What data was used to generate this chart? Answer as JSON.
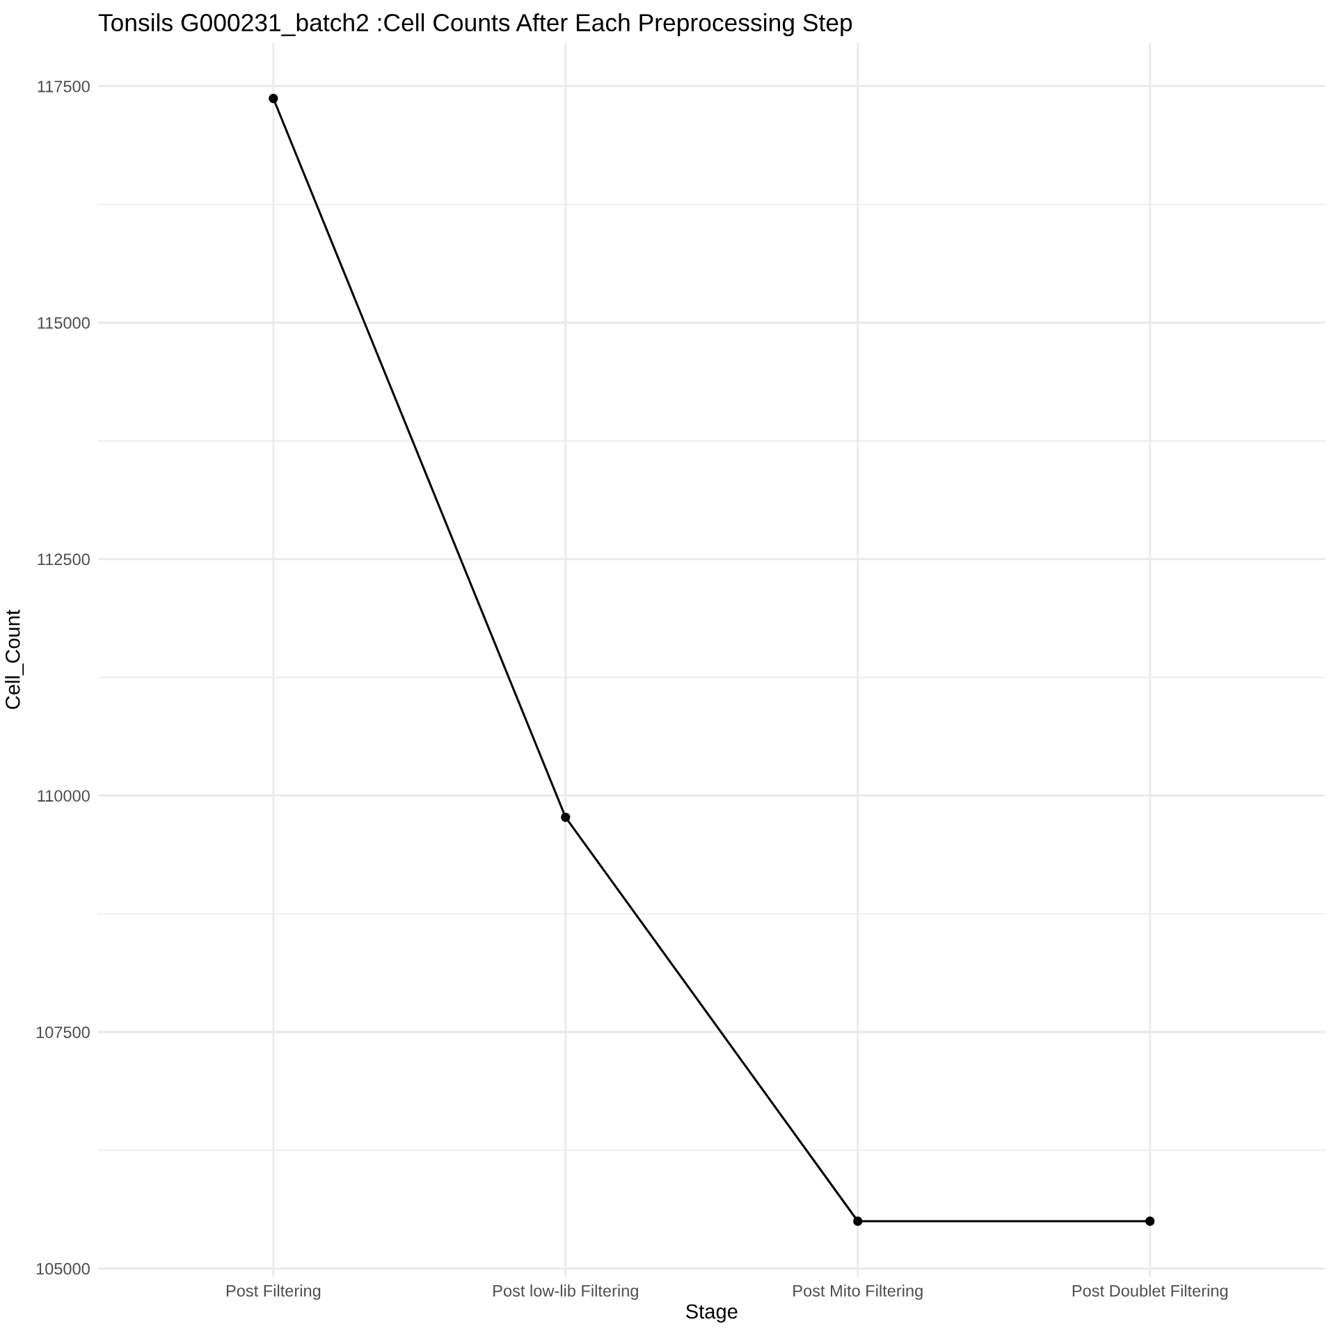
{
  "chart_data": {
    "type": "line",
    "title": "Tonsils G000231_batch2 :Cell Counts After Each Preprocessing Step",
    "xlabel": "Stage",
    "ylabel": "Cell_Count",
    "categories": [
      "Post Filtering",
      "Post low-lib Filtering",
      "Post Mito Filtering",
      "Post Doublet Filtering"
    ],
    "series": [
      {
        "color": "#000000",
        "values": [
          117370,
          109770,
          105500,
          105500
        ]
      }
    ],
    "ylim": [
      104912,
      117959
    ],
    "yticks": [
      105000,
      {
        "value": 106250,
        "label": null
      },
      107500,
      {
        "value": 108750,
        "label": null
      },
      110000,
      {
        "value": 111250,
        "label": null
      },
      112500,
      {
        "value": 113750,
        "label": null
      },
      115000,
      {
        "value": 116250,
        "label": null
      },
      117500
    ],
    "grid": true,
    "marker": "circle",
    "line_style": "solid"
  }
}
